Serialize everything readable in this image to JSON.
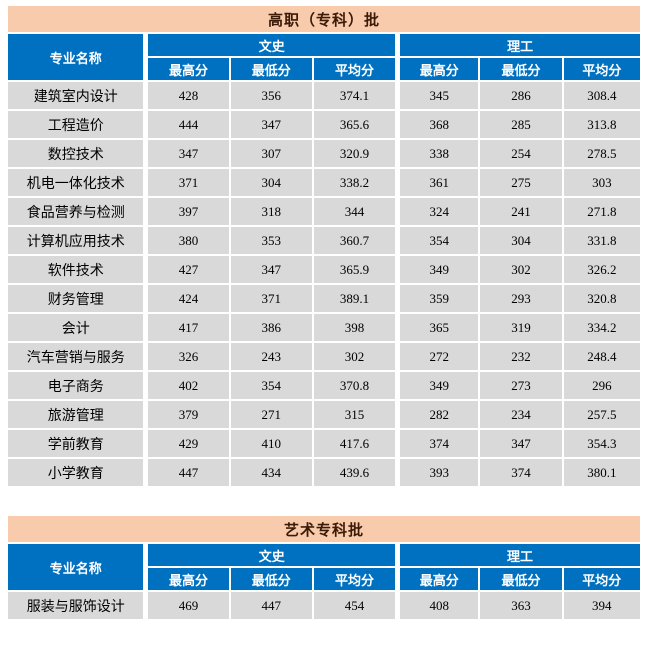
{
  "colors": {
    "title_bg": "#F8CBAD",
    "title_text": "#3B1A07",
    "header_bg": "#0070C0",
    "header_text": "#FFFFFF",
    "row_bg": "#D9D9D9",
    "row_text": "#000000"
  },
  "tables": [
    {
      "title": "高职（专科）批",
      "major_header": "专业名称",
      "groups": [
        {
          "label": "文史",
          "columns": [
            "最高分",
            "最低分",
            "平均分"
          ]
        },
        {
          "label": "理工",
          "columns": [
            "最高分",
            "最低分",
            "平均分"
          ]
        }
      ],
      "rows": [
        {
          "major": "建筑室内设计",
          "values": [
            "428",
            "356",
            "374.1",
            "345",
            "286",
            "308.4"
          ]
        },
        {
          "major": "工程造价",
          "values": [
            "444",
            "347",
            "365.6",
            "368",
            "285",
            "313.8"
          ]
        },
        {
          "major": "数控技术",
          "values": [
            "347",
            "307",
            "320.9",
            "338",
            "254",
            "278.5"
          ]
        },
        {
          "major": "机电一体化技术",
          "values": [
            "371",
            "304",
            "338.2",
            "361",
            "275",
            "303"
          ]
        },
        {
          "major": "食品营养与检测",
          "values": [
            "397",
            "318",
            "344",
            "324",
            "241",
            "271.8"
          ]
        },
        {
          "major": "计算机应用技术",
          "values": [
            "380",
            "353",
            "360.7",
            "354",
            "304",
            "331.8"
          ]
        },
        {
          "major": "软件技术",
          "values": [
            "427",
            "347",
            "365.9",
            "349",
            "302",
            "326.2"
          ]
        },
        {
          "major": "财务管理",
          "values": [
            "424",
            "371",
            "389.1",
            "359",
            "293",
            "320.8"
          ]
        },
        {
          "major": "会计",
          "values": [
            "417",
            "386",
            "398",
            "365",
            "319",
            "334.2"
          ]
        },
        {
          "major": "汽车营销与服务",
          "values": [
            "326",
            "243",
            "302",
            "272",
            "232",
            "248.4"
          ]
        },
        {
          "major": "电子商务",
          "values": [
            "402",
            "354",
            "370.8",
            "349",
            "273",
            "296"
          ]
        },
        {
          "major": "旅游管理",
          "values": [
            "379",
            "271",
            "315",
            "282",
            "234",
            "257.5"
          ]
        },
        {
          "major": "学前教育",
          "values": [
            "429",
            "410",
            "417.6",
            "374",
            "347",
            "354.3"
          ]
        },
        {
          "major": "小学教育",
          "values": [
            "447",
            "434",
            "439.6",
            "393",
            "374",
            "380.1"
          ]
        }
      ]
    },
    {
      "title": "艺术专科批",
      "major_header": "专业名称",
      "groups": [
        {
          "label": "文史",
          "columns": [
            "最高分",
            "最低分",
            "平均分"
          ]
        },
        {
          "label": "理工",
          "columns": [
            "最高分",
            "最低分",
            "平均分"
          ]
        }
      ],
      "rows": [
        {
          "major": "服装与服饰设计",
          "values": [
            "469",
            "447",
            "454",
            "408",
            "363",
            "394"
          ]
        }
      ]
    }
  ]
}
